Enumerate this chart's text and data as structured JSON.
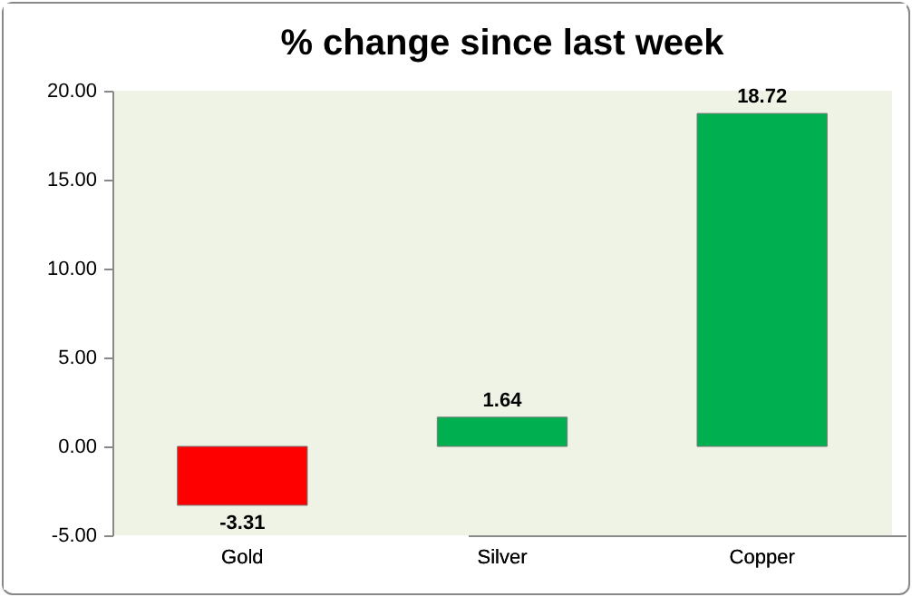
{
  "chart_data": {
    "type": "bar",
    "title": "% change since last week",
    "categories": [
      "Gold",
      "Silver",
      "Copper"
    ],
    "values": [
      -3.31,
      1.64,
      18.72
    ],
    "colors": [
      "#ff0000",
      "#00b050",
      "#00b050"
    ],
    "ylim": [
      -5,
      20
    ],
    "yticks": [
      {
        "value": -5,
        "label": "-5.00"
      },
      {
        "value": 0,
        "label": "0.00"
      },
      {
        "value": 5,
        "label": "5.00"
      },
      {
        "value": 10,
        "label": "10.00"
      },
      {
        "value": 15,
        "label": "15.00"
      },
      {
        "value": 20,
        "label": "20.00"
      }
    ],
    "grid": false,
    "data_labels": true
  }
}
